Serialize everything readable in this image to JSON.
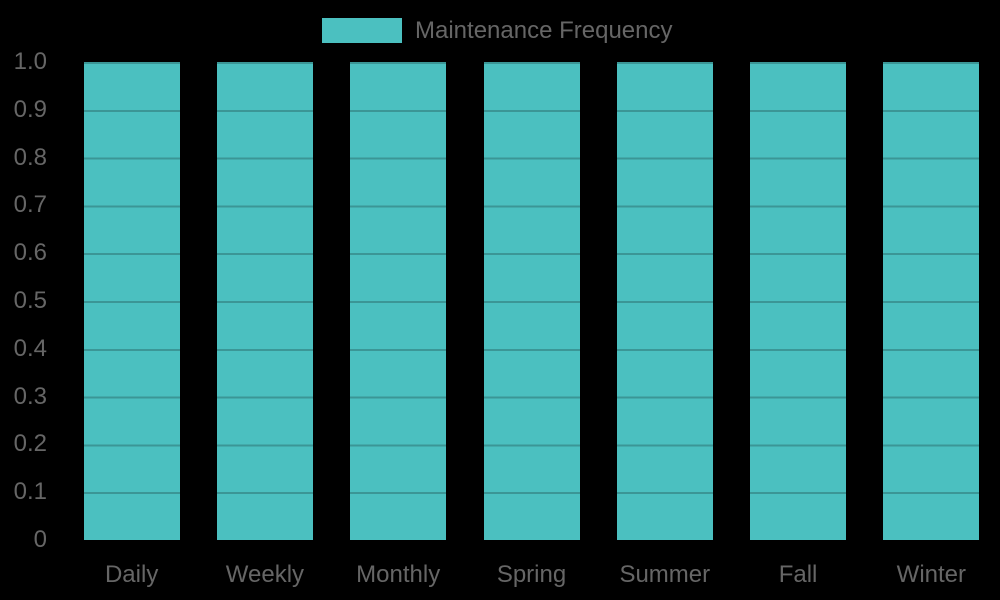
{
  "legend": {
    "label": "Maintenance Frequency"
  },
  "colors": {
    "background": "#000000",
    "bar": "#4bc0c0",
    "grid_on_bar": "rgba(0,0,0,0.22)",
    "text": "#666666"
  },
  "chart_data": {
    "type": "bar",
    "title": "",
    "xlabel": "",
    "ylabel": "",
    "categories": [
      "Daily",
      "Weekly",
      "Monthly",
      "Spring",
      "Summer",
      "Fall",
      "Winter"
    ],
    "series": [
      {
        "name": "Maintenance Frequency",
        "values": [
          1.0,
          1.0,
          1.0,
          1.0,
          1.0,
          1.0,
          1.0
        ]
      }
    ],
    "ylim": [
      0,
      1.0
    ],
    "ytick_labels": [
      "1.0",
      "0.9",
      "0.8",
      "0.7",
      "0.6",
      "0.5",
      "0.4",
      "0.3",
      "0.2",
      "0.1",
      "0"
    ],
    "grid": true,
    "legend_position": "top-center",
    "background": "black"
  }
}
